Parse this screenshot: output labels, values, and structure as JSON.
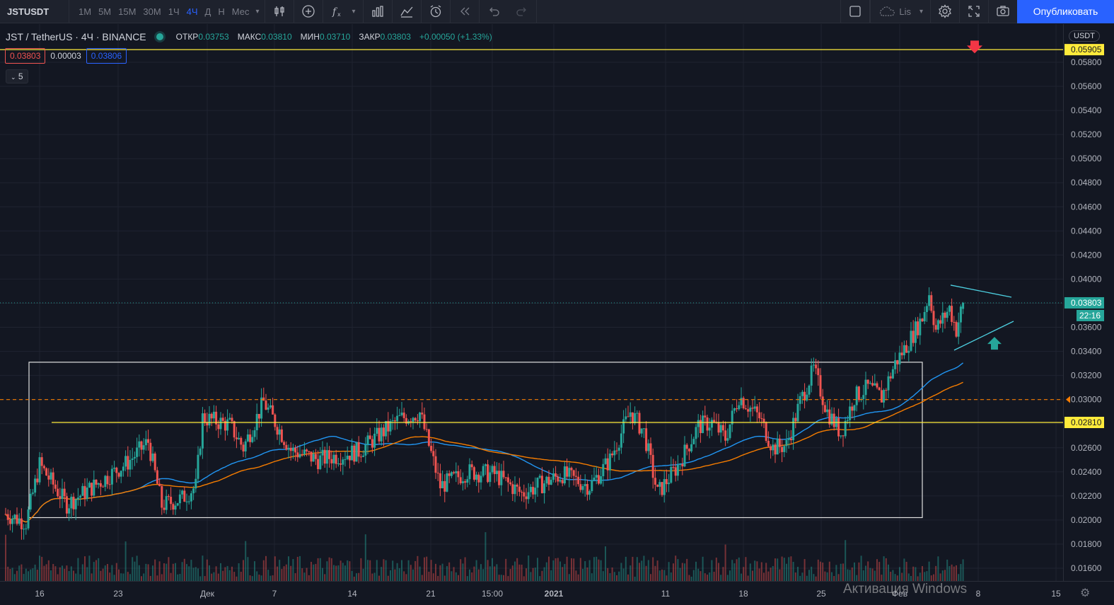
{
  "toolbar": {
    "symbol": "JSTUSDT",
    "intervals": [
      "1M",
      "5M",
      "15M",
      "30M",
      "1Ч",
      "4Ч",
      "Д",
      "Н",
      "Мес"
    ],
    "active_interval": "4Ч",
    "layout_label": "Lis",
    "publish_label": "Опубликовать"
  },
  "legend": {
    "title": "JST / TetherUS · 4Ч · BINANCE",
    "open_label": "ОТКР",
    "open": "0.03753",
    "high_label": "МАКС",
    "high": "0.03810",
    "low_label": "МИН",
    "low": "0.03710",
    "close_label": "ЗАКР",
    "close": "0.03803",
    "change": "+0.00050 (+1.33%)"
  },
  "quote": {
    "bid": "0.03803",
    "spread": "0.00003",
    "ask": "0.03806"
  },
  "indicators_collapsed": "5",
  "price_axis": {
    "currency": "USDT",
    "countdown": "22:16"
  },
  "watermark": "Активация Windows",
  "colors": {
    "background": "#131722",
    "up": "#26a69a",
    "down": "#ef5350",
    "ma_fast": "#2196f3",
    "ma_slow": "#f57c00",
    "level": "#ffeb3b",
    "triangle": "#4dd0e1",
    "resistance_dashed": "#f57c00"
  },
  "chart_data": {
    "type": "candlestick",
    "title": "JST / TetherUS · 4Ч · BINANCE",
    "ylim": [
      0.0145,
      0.0608
    ],
    "yticks": [
      "0.01600",
      "0.01800",
      "0.02000",
      "0.02200",
      "0.02400",
      "0.02600",
      "0.02800",
      "0.03000",
      "0.03200",
      "0.03400",
      "0.03600",
      "0.03800",
      "0.04000",
      "0.04200",
      "0.04400",
      "0.04600",
      "0.04800",
      "0.05000",
      "0.05200",
      "0.05400",
      "0.05600",
      "0.05800"
    ],
    "xticks": [
      "16",
      "23",
      "Дек",
      "7",
      "14",
      "21",
      "15:00",
      "2021",
      "11",
      "18",
      "25",
      "Фев",
      "8",
      "15"
    ],
    "price_labels": {
      "alert_top": "0.05905",
      "last": "0.03803",
      "level_horizontal": "0.02810",
      "level_dashed": "0.03000"
    },
    "levels": {
      "alert_top": 0.05905,
      "horizontal": 0.0281,
      "dashed": 0.03,
      "last": 0.03803
    },
    "range_box": {
      "from_price": 0.0202,
      "to_price": 0.0331
    },
    "anchors": [
      {
        "t": 0,
        "p": 0.0205
      },
      {
        "t": 3,
        "p": 0.0198
      },
      {
        "t": 5,
        "p": 0.0246
      },
      {
        "t": 9,
        "p": 0.0213
      },
      {
        "t": 14,
        "p": 0.0232
      },
      {
        "t": 18,
        "p": 0.0248
      },
      {
        "t": 21,
        "p": 0.0265
      },
      {
        "t": 23,
        "p": 0.0212
      },
      {
        "t": 26,
        "p": 0.0218
      },
      {
        "t": 28,
        "p": 0.0228
      },
      {
        "t": 29,
        "p": 0.0285
      },
      {
        "t": 33,
        "p": 0.0279
      },
      {
        "t": 35,
        "p": 0.026
      },
      {
        "t": 38,
        "p": 0.0298
      },
      {
        "t": 42,
        "p": 0.0258
      },
      {
        "t": 46,
        "p": 0.025
      },
      {
        "t": 52,
        "p": 0.0257
      },
      {
        "t": 58,
        "p": 0.0284
      },
      {
        "t": 61,
        "p": 0.0289
      },
      {
        "t": 64,
        "p": 0.0228
      },
      {
        "t": 68,
        "p": 0.024
      },
      {
        "t": 72,
        "p": 0.0238
      },
      {
        "t": 76,
        "p": 0.0222
      },
      {
        "t": 82,
        "p": 0.0238
      },
      {
        "t": 86,
        "p": 0.0228
      },
      {
        "t": 89,
        "p": 0.025
      },
      {
        "t": 92,
        "p": 0.029
      },
      {
        "t": 94,
        "p": 0.0273
      },
      {
        "t": 96,
        "p": 0.0222
      },
      {
        "t": 99,
        "p": 0.0245
      },
      {
        "t": 102,
        "p": 0.0278
      },
      {
        "t": 104,
        "p": 0.0281
      },
      {
        "t": 106,
        "p": 0.0268
      },
      {
        "t": 108,
        "p": 0.0303
      },
      {
        "t": 111,
        "p": 0.0285
      },
      {
        "t": 113,
        "p": 0.026
      },
      {
        "t": 115,
        "p": 0.0262
      },
      {
        "t": 117,
        "p": 0.0298
      },
      {
        "t": 119,
        "p": 0.0325
      },
      {
        "t": 121,
        "p": 0.029
      },
      {
        "t": 123,
        "p": 0.0272
      },
      {
        "t": 125,
        "p": 0.0302
      },
      {
        "t": 127,
        "p": 0.031
      },
      {
        "t": 129,
        "p": 0.0302
      },
      {
        "t": 131,
        "p": 0.033
      },
      {
        "t": 133,
        "p": 0.0348
      },
      {
        "t": 135,
        "p": 0.0368
      },
      {
        "t": 136,
        "p": 0.0388
      },
      {
        "t": 137,
        "p": 0.0358
      },
      {
        "t": 139,
        "p": 0.0376
      },
      {
        "t": 140,
        "p": 0.0358
      },
      {
        "t": 141,
        "p": 0.038
      }
    ]
  }
}
